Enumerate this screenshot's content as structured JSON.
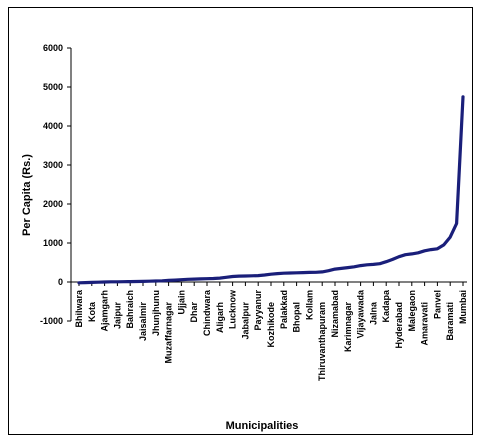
{
  "chart_data": {
    "type": "line",
    "title": "",
    "xlabel": "Municipalities",
    "ylabel": "Per Capita (Rs.)",
    "ylim": [
      -1000,
      6000
    ],
    "yticks": [
      -1000,
      0,
      1000,
      2000,
      3000,
      4000,
      5000,
      6000
    ],
    "grid": false,
    "legend": "none",
    "line_color": "#1a1f7a",
    "tick_labels": [
      "Bhilwara",
      "Kota",
      "Ajamgarh",
      "Jaipur",
      "Bahraich",
      "Jaisalmir",
      "Jhunjhunu",
      "Muzaffarnagar",
      "Ujjain",
      "Dhar",
      "Chindwara",
      "Aligarh",
      "Lucknow",
      "Jabalpur",
      "Payyanur",
      "Kozhikode",
      "Palakkad",
      "Bhopal",
      "Kollam",
      "Thiruvanthapuram",
      "Nizamabad",
      "Karimnagar",
      "Vijayawada",
      "Jalna",
      "Kadapa",
      "Hyderabad",
      "Malegaon",
      "Amaravati",
      "Panvel",
      "Baramati",
      "Mumbai"
    ],
    "x": [
      0,
      1,
      2,
      3,
      4,
      5,
      6,
      7,
      8,
      9,
      10,
      11,
      12,
      13,
      14,
      15,
      16,
      17,
      18,
      19,
      20,
      21,
      22,
      23,
      24,
      25,
      26,
      27,
      28,
      29,
      30,
      31,
      32,
      33,
      34,
      35,
      36,
      37,
      38,
      39,
      40,
      41,
      42,
      43,
      44,
      45,
      46,
      47,
      48,
      49,
      50,
      51,
      52,
      53,
      54,
      55,
      56,
      57,
      58,
      59,
      60
    ],
    "values": [
      -20,
      -15,
      -10,
      -5,
      0,
      5,
      5,
      8,
      10,
      12,
      15,
      20,
      25,
      30,
      40,
      50,
      60,
      70,
      75,
      80,
      85,
      90,
      100,
      120,
      140,
      150,
      155,
      160,
      165,
      180,
      200,
      215,
      225,
      230,
      235,
      240,
      245,
      250,
      260,
      290,
      330,
      350,
      370,
      390,
      420,
      440,
      450,
      470,
      520,
      580,
      650,
      700,
      720,
      750,
      800,
      830,
      850,
      950,
      1150,
      1500,
      4750
    ]
  }
}
